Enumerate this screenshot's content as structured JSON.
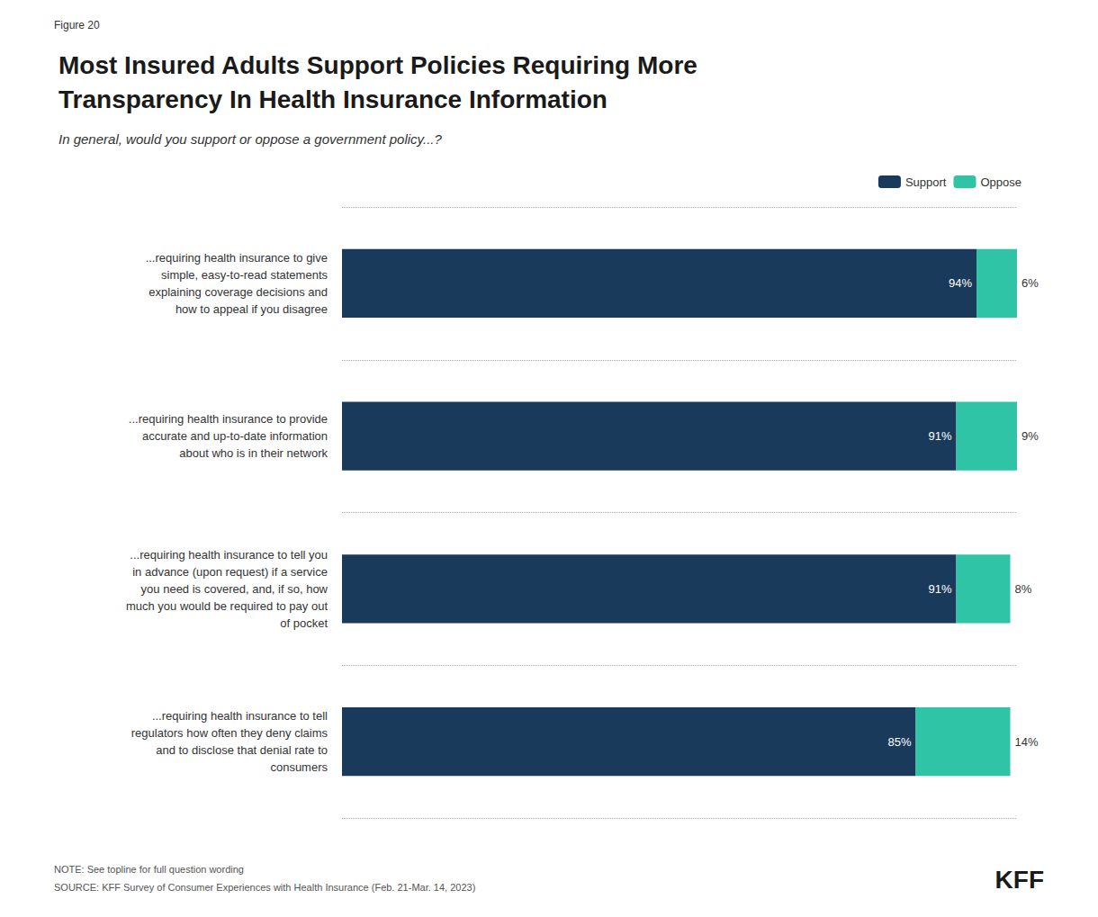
{
  "chart_data": {
    "type": "bar",
    "orientation": "horizontal",
    "stacked": true,
    "figure_label": "Figure 20",
    "title": "Most Insured Adults Support Policies Requiring More\nTransparency In Health Insurance Information",
    "subtitle": "In general, would you support or oppose a government policy...?",
    "categories": [
      "...requiring health insurance to give\nsimple, easy-to-read statements\nexplaining coverage decisions and\nhow to appeal if you disagree",
      "...requiring health insurance to provide\naccurate and up-to-date information\nabout who is in their network",
      "...requiring health insurance to tell you\nin advance (upon request) if a service\nyou need is covered, and, if so, how\nmuch you would be required to pay out\nof pocket",
      "...requiring health insurance to tell\nregulators how often they deny claims\nand to disclose that denial rate to\nconsumers"
    ],
    "series": [
      {
        "name": "Support",
        "color": "#1a3a5c",
        "values": [
          94,
          91,
          91,
          85
        ],
        "value_labels": [
          "94%",
          "91%",
          "91%",
          "85%"
        ]
      },
      {
        "name": "Oppose",
        "color": "#2ec4a5",
        "values": [
          6,
          9,
          8,
          14
        ],
        "value_labels": [
          "6%",
          "9%",
          "8%",
          "14%"
        ]
      }
    ],
    "xlim": [
      0,
      100
    ],
    "tick_labels": false,
    "grid": true,
    "legend": "top",
    "data_labels": true,
    "notes": [
      "NOTE: See topline for full question wording",
      "SOURCE: KFF Survey of Consumer Experiences with Health Insurance (Feb. 21-Mar. 14, 2023)"
    ],
    "logo_text": "KFF"
  }
}
